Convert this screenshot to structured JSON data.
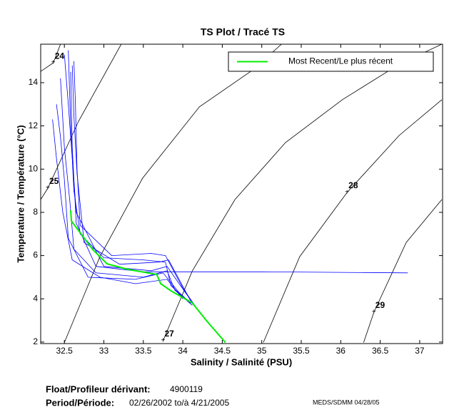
{
  "chart_data": {
    "type": "line",
    "title": "TS Plot / Tracé TS",
    "x_label": "Salinity / Salinité (PSU)",
    "y_label": "Temperature / Température (°C)",
    "xlim": [
      32.2,
      37.29
    ],
    "ylim": [
      1.93,
      15.78
    ],
    "xticks": [
      32.5,
      33,
      33.5,
      34,
      34.5,
      35,
      35.5,
      36,
      36.5,
      37
    ],
    "yticks": [
      2,
      4,
      6,
      8,
      10,
      12,
      14
    ],
    "legend_position": "upper right",
    "isopycnals": [
      {
        "label": "24",
        "x": [
          32.2,
          32.36,
          32.45
        ],
        "y": [
          14.52,
          14.92,
          15.78
        ]
      },
      {
        "label": "25",
        "x": [
          32.2,
          32.29,
          32.68,
          33.22
        ],
        "y": [
          8.59,
          9.12,
          12.22,
          15.78
        ]
      },
      {
        "x": [
          32.5,
          32.95,
          33.49,
          34.21,
          34.86,
          35.25
        ],
        "y": [
          1.98,
          5.95,
          9.58,
          12.88,
          14.52,
          15.78
        ]
      },
      {
        "label": "27",
        "x": [
          33.75,
          34.12,
          34.66,
          35.3,
          36.02,
          36.74,
          37.28
        ],
        "y": [
          2.06,
          5.29,
          8.59,
          11.23,
          13.21,
          14.85,
          15.78
        ]
      },
      {
        "label": "28",
        "x": [
          35.02,
          35.48,
          36.08,
          36.74,
          37.28
        ],
        "y": [
          1.98,
          5.95,
          8.92,
          11.56,
          13.21
        ]
      },
      {
        "label": "29",
        "x": [
          36.29,
          36.42,
          36.83,
          37.28
        ],
        "y": [
          1.98,
          3.38,
          6.61,
          8.59
        ]
      }
    ],
    "series": [
      {
        "color": "#0000ff",
        "x": [
          32.55,
          32.58,
          32.62,
          32.7,
          33.0,
          33.5,
          33.78,
          33.85,
          34.1
        ],
        "y": [
          15.5,
          12,
          9,
          7,
          5.9,
          5.8,
          5.7,
          4.6,
          3.8
        ]
      },
      {
        "color": "#0000ff",
        "x": [
          32.45,
          32.5,
          32.57,
          32.62,
          32.9,
          33.5,
          33.8,
          33.9,
          34.12
        ],
        "y": [
          14.2,
          11,
          8.5,
          6.3,
          5.2,
          5.0,
          5.3,
          4.4,
          3.7
        ]
      },
      {
        "color": "#0000ff",
        "x": [
          32.62,
          32.64,
          32.66,
          32.7,
          33.1,
          33.6,
          33.78,
          34.0,
          34.15
        ],
        "y": [
          15.0,
          13,
          10,
          7.4,
          6.0,
          6.1,
          6.0,
          4.5,
          3.7
        ]
      },
      {
        "color": "#0000ff",
        "x": [
          32.4,
          32.45,
          32.5,
          32.55,
          32.8,
          33.4,
          33.75,
          33.95,
          34.1
        ],
        "y": [
          13.0,
          11.5,
          9.5,
          6.8,
          5.0,
          4.9,
          5.2,
          4.3,
          3.8
        ]
      },
      {
        "color": "#0000ff",
        "x": [
          32.5,
          32.55,
          32.6,
          32.65,
          33.0,
          33.6,
          33.8,
          34.05,
          34.15
        ],
        "y": [
          15.3,
          13,
          10.5,
          8,
          5.5,
          5.3,
          5.5,
          4.2,
          3.7
        ]
      },
      {
        "color": "#0000ff",
        "x": [
          32.58,
          32.6,
          32.65,
          32.9,
          33.5,
          35.0,
          36.85
        ],
        "y": [
          14.5,
          11,
          7.5,
          5.5,
          5.25,
          5.25,
          5.2
        ]
      },
      {
        "color": "#0000ff",
        "x": [
          32.35,
          32.4,
          32.48,
          32.6,
          32.95,
          33.4,
          33.8,
          34.0
        ],
        "y": [
          12.3,
          10.5,
          8,
          5.8,
          5.0,
          4.7,
          4.9,
          4.0
        ]
      },
      {
        "color": "#0000ff",
        "x": [
          32.6,
          32.62,
          32.66,
          32.75,
          33.2,
          33.7,
          33.82,
          34.1
        ],
        "y": [
          14.8,
          12.5,
          9.8,
          6.6,
          5.6,
          5.7,
          5.8,
          3.9
        ]
      },
      {
        "name": "Most Recent/Le plus récent",
        "color": "#00ee00",
        "x": [
          32.58,
          32.59,
          32.86,
          33.04,
          33.31,
          33.67,
          33.72,
          33.85,
          34.12,
          34.3,
          34.54
        ],
        "y": [
          8.1,
          7.6,
          6.28,
          5.62,
          5.36,
          5.13,
          4.7,
          4.37,
          3.81,
          2.99,
          1.98
        ]
      }
    ],
    "footer": {
      "float_label": "Float/Profileur dérivant:",
      "float_id": "4900119",
      "period_label": "Period/Période:",
      "period": "02/26/2002  to/à  4/21/2005",
      "credit": "MEDS/SDMM  04/28/05"
    }
  }
}
